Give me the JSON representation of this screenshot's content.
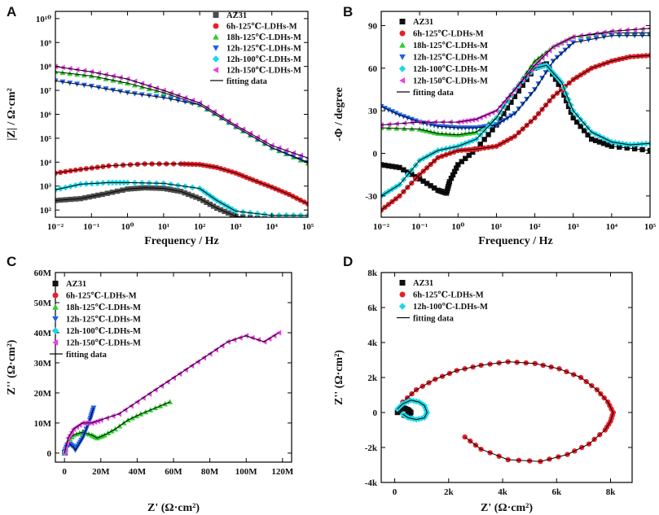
{
  "chart_data": [
    {
      "id": "A",
      "panel_label": "A",
      "type": "scatter",
      "xscale": "log",
      "yscale": "log",
      "xlim": [
        0.01,
        100000
      ],
      "ylim": [
        50,
        20000000000
      ],
      "xlabel": "Frequency / Hz",
      "ylabel": "|Z| / Ω·cm²",
      "xticks": [
        0.01,
        0.1,
        1,
        10,
        100,
        1000,
        10000,
        100000
      ],
      "xtick_labels": [
        "10⁻²",
        "10⁻¹",
        "10⁰",
        "10¹",
        "10²",
        "10³",
        "10⁴",
        "10⁵"
      ],
      "yticks": [
        100,
        1000,
        10000,
        100000,
        1000000,
        10000000,
        100000000,
        1000000000,
        10000000000
      ],
      "ytick_labels": [
        "10²",
        "10³",
        "10⁴",
        "10⁵",
        "10⁶",
        "10⁷",
        "10⁸",
        "10⁹",
        "10¹⁰"
      ],
      "legend_position": "top-right",
      "series": [
        {
          "name": "AZ31",
          "color": "#4d4d4d",
          "marker": "square",
          "x": [
            0.01,
            0.05,
            0.2,
            1,
            3,
            10,
            30,
            100,
            300,
            1000,
            10000,
            100000
          ],
          "y": [
            250,
            300,
            450,
            750,
            850,
            800,
            600,
            300,
            120,
            55,
            40,
            40
          ]
        },
        {
          "name": "6h-125℃-LDHs-M",
          "color": "#e8202a",
          "marker": "circle",
          "x": [
            0.01,
            0.05,
            0.3,
            3,
            30,
            100,
            300,
            1000,
            3000,
            10000,
            30000,
            100000
          ],
          "y": [
            3500,
            5000,
            7000,
            8500,
            8500,
            8000,
            6000,
            3500,
            1800,
            900,
            450,
            180
          ]
        },
        {
          "name": "18h-125℃-LDHs-M",
          "color": "#2ecc2e",
          "marker": "triangle-up",
          "x": [
            0.01,
            0.1,
            1,
            10,
            100,
            1000,
            10000,
            100000
          ],
          "y": [
            60000000,
            40000000,
            20000000,
            8000000,
            2500000,
            300000,
            40000,
            9000
          ]
        },
        {
          "name": "12h-125℃-LDHs-M",
          "color": "#1f5fe8",
          "marker": "triangle-down",
          "x": [
            0.01,
            0.1,
            1,
            10,
            100,
            1000,
            10000,
            100000
          ],
          "y": [
            25000000,
            15000000,
            8000000,
            5000000,
            2500000,
            300000,
            40000,
            10000
          ]
        },
        {
          "name": "12h-100℃-LDHs-M",
          "color": "#19d8e8",
          "marker": "diamond",
          "x": [
            0.01,
            0.05,
            0.3,
            1,
            10,
            100,
            300,
            1000,
            10000,
            100000
          ],
          "y": [
            700,
            1200,
            1400,
            1400,
            1300,
            800,
            250,
            90,
            60,
            60
          ]
        },
        {
          "name": "12h-150℃-LDHs-M",
          "color": "#ec3fe8",
          "marker": "triangle-left",
          "x": [
            0.01,
            0.1,
            1,
            10,
            100,
            1000,
            10000,
            100000
          ],
          "y": [
            100000000,
            60000000,
            30000000,
            10000000,
            3000000,
            350000,
            50000,
            15000
          ]
        }
      ],
      "fitting_label": "fitting data"
    },
    {
      "id": "B",
      "panel_label": "B",
      "type": "scatter",
      "xscale": "log",
      "yscale": "linear",
      "xlim": [
        0.01,
        100000
      ],
      "ylim": [
        -45,
        100
      ],
      "xlabel": "Frequency / Hz",
      "ylabel": "-Φ / degree",
      "xticks": [
        0.01,
        0.1,
        1,
        10,
        100,
        1000,
        10000,
        100000
      ],
      "xtick_labels": [
        "10⁻²",
        "10⁻¹",
        "10⁰",
        "10¹",
        "10²",
        "10³",
        "10⁴",
        "10⁵"
      ],
      "yticks": [
        -30,
        0,
        30,
        60,
        90
      ],
      "ytick_labels": [
        "-30",
        "0",
        "30",
        "60",
        "90"
      ],
      "legend_position": "top-left",
      "series": [
        {
          "name": "AZ31",
          "color": "#111111",
          "marker": "square",
          "x": [
            0.01,
            0.03,
            0.1,
            0.3,
            0.5,
            0.6,
            1,
            3,
            10,
            30,
            100,
            200,
            500,
            1000,
            3000,
            10000,
            100000
          ],
          "y": [
            -8,
            -10,
            -18,
            -26,
            -28,
            -20,
            -8,
            3,
            20,
            40,
            60,
            63,
            45,
            25,
            10,
            5,
            2
          ]
        },
        {
          "name": "6h-125℃-LDHs-M",
          "color": "#e8202a",
          "marker": "circle",
          "x": [
            0.01,
            0.03,
            0.1,
            0.3,
            1,
            3,
            10,
            30,
            100,
            300,
            1000,
            3000,
            10000,
            30000,
            100000
          ],
          "y": [
            -40,
            -30,
            -15,
            -3,
            2,
            3,
            5,
            12,
            25,
            40,
            52,
            60,
            65,
            68,
            69
          ]
        },
        {
          "name": "18h-125℃-LDHs-M",
          "color": "#2ecc2e",
          "marker": "triangle-up",
          "x": [
            0.01,
            0.1,
            0.3,
            1,
            3,
            10,
            30,
            100,
            300,
            1000,
            10000,
            100000
          ],
          "y": [
            18,
            17,
            14,
            13,
            15,
            25,
            45,
            65,
            75,
            82,
            85,
            85
          ]
        },
        {
          "name": "12h-125℃-LDHs-M",
          "color": "#1f5fe8",
          "marker": "triangle-down",
          "x": [
            0.01,
            0.03,
            0.1,
            0.3,
            1,
            3,
            10,
            30,
            100,
            300,
            1000,
            10000,
            100000
          ],
          "y": [
            33,
            27,
            22,
            19,
            18,
            18,
            20,
            28,
            45,
            65,
            78,
            83,
            83
          ]
        },
        {
          "name": "12h-100℃-LDHs-M",
          "color": "#19d8e8",
          "marker": "diamond",
          "x": [
            0.01,
            0.03,
            0.1,
            0.3,
            1,
            3,
            10,
            30,
            100,
            200,
            500,
            1000,
            3000,
            10000,
            30000,
            100000
          ],
          "y": [
            -30,
            -22,
            -5,
            2,
            5,
            10,
            25,
            45,
            60,
            62,
            50,
            30,
            15,
            8,
            6,
            7
          ]
        },
        {
          "name": "12h-150℃-LDHs-M",
          "color": "#ec3fe8",
          "marker": "triangle-left",
          "x": [
            0.01,
            0.1,
            1,
            3,
            10,
            30,
            100,
            300,
            1000,
            10000,
            100000
          ],
          "y": [
            20,
            22,
            22,
            24,
            30,
            45,
            62,
            75,
            82,
            86,
            88
          ]
        }
      ],
      "fitting_label": "fitting data"
    },
    {
      "id": "C",
      "panel_label": "C",
      "type": "scatter",
      "xscale": "linear",
      "yscale": "linear",
      "xlim": [
        -5,
        125
      ],
      "ylim": [
        -3,
        60
      ],
      "xlabel": "Z' (Ω·cm²)",
      "ylabel": "Z'' (Ω·cm²)",
      "xticks": [
        0,
        20,
        40,
        60,
        80,
        100,
        120
      ],
      "xtick_labels": [
        "0",
        "20M",
        "40M",
        "60M",
        "80M",
        "100M",
        "120M"
      ],
      "yticks": [
        0,
        10,
        20,
        30,
        40,
        50,
        60
      ],
      "ytick_labels": [
        "0",
        "10M",
        "20M",
        "30M",
        "40M",
        "50M",
        "60M"
      ],
      "legend_position": "top-left",
      "series": [
        {
          "name": "AZ31",
          "color": "#111111",
          "marker": "square",
          "x": [
            0.1,
            0.2
          ],
          "y": [
            0.1,
            0.1
          ]
        },
        {
          "name": "6h-125℃-LDHs-M",
          "color": "#e8202a",
          "marker": "circle",
          "x": [
            0.2,
            0.4
          ],
          "y": [
            0.2,
            0.3
          ]
        },
        {
          "name": "18h-125℃-LDHs-M",
          "color": "#2ecc2e",
          "marker": "triangle-up",
          "x": [
            0,
            2,
            5,
            10,
            15,
            18,
            22,
            28,
            35,
            42,
            50,
            58
          ],
          "y": [
            0,
            4,
            6,
            7,
            6,
            5,
            6,
            8,
            11,
            13,
            15,
            17
          ]
        },
        {
          "name": "12h-125℃-LDHs-M",
          "color": "#1f5fe8",
          "marker": "triangle-down",
          "x": [
            0,
            1,
            3,
            5,
            6,
            8,
            10,
            12,
            14,
            15,
            16
          ],
          "y": [
            0,
            2,
            3,
            2,
            1,
            3,
            5,
            8,
            11,
            13,
            15
          ]
        },
        {
          "name": "12h-100℃-LDHs-M",
          "color": "#19d8e8",
          "marker": "diamond",
          "x": [
            0.1,
            0.3
          ],
          "y": [
            0.1,
            0.2
          ]
        },
        {
          "name": "12h-150℃-LDHs-M",
          "color": "#ec3fe8",
          "marker": "triangle-left",
          "x": [
            0,
            2,
            5,
            10,
            15,
            20,
            30,
            40,
            50,
            60,
            70,
            80,
            90,
            100,
            110,
            118
          ],
          "y": [
            0,
            5,
            8,
            10,
            10,
            11,
            13,
            17,
            21,
            25,
            29,
            33,
            37,
            39,
            37,
            40
          ]
        }
      ],
      "fitting_label": "fitting data"
    },
    {
      "id": "D",
      "panel_label": "D",
      "type": "scatter",
      "xscale": "linear",
      "yscale": "linear",
      "xlim": [
        -0.5,
        8.8
      ],
      "ylim": [
        -4,
        8
      ],
      "xlabel": "Z' (Ω·cm²)",
      "ylabel": "Z'' (Ω·cm²)",
      "xticks": [
        0,
        2,
        4,
        6,
        8
      ],
      "xtick_labels": [
        "0",
        "2k",
        "4k",
        "6k",
        "8k"
      ],
      "yticks": [
        -4,
        -2,
        0,
        2,
        4,
        6,
        8
      ],
      "ytick_labels": [
        "-4k",
        "-2k",
        "0",
        "2k",
        "4k",
        "6k",
        "8k"
      ],
      "legend_position": "top-left",
      "series": [
        {
          "name": "AZ31",
          "color": "#111111",
          "marker": "square",
          "x": [
            0.1,
            0.2,
            0.35,
            0.5,
            0.6,
            0.5,
            0.35
          ],
          "y": [
            0,
            0.2,
            0.25,
            0.15,
            0,
            -0.2,
            -0.15
          ]
        },
        {
          "name": "6h-125℃-LDHs-M",
          "color": "#e8202a",
          "marker": "circle",
          "x": [
            0.3,
            0.8,
            1.5,
            2.3,
            3.2,
            4.2,
            5.2,
            6.1,
            6.9,
            7.5,
            7.9,
            8.1,
            8.0,
            7.8,
            7.2,
            6.4,
            5.4,
            4.2,
            3.2,
            2.6
          ],
          "y": [
            0.6,
            1.3,
            1.9,
            2.4,
            2.7,
            2.9,
            2.8,
            2.5,
            2.0,
            1.3,
            0.6,
            0,
            -0.5,
            -1.0,
            -1.8,
            -2.4,
            -2.8,
            -2.7,
            -2.1,
            -1.4
          ]
        },
        {
          "name": "12h-100℃-LDHs-M",
          "color": "#19d8e8",
          "marker": "diamond",
          "x": [
            0.1,
            0.3,
            0.6,
            0.9,
            1.1,
            1.2,
            1.1,
            0.8,
            0.5,
            0.3
          ],
          "y": [
            0.2,
            0.5,
            0.7,
            0.6,
            0.4,
            0,
            -0.3,
            -0.4,
            -0.3,
            -0.1
          ]
        }
      ],
      "fitting_label": "fitting data"
    }
  ]
}
